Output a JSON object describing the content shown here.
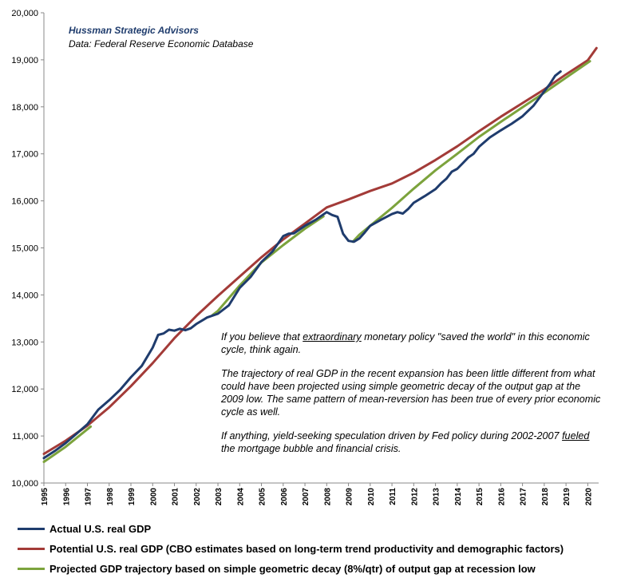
{
  "source": {
    "title": "Hussman Strategic Advisors",
    "data_note": "Data: Federal Reserve Economic Database"
  },
  "annotation": {
    "p1_pre": "If you believe that ",
    "p1_u": "extraordinary",
    "p1_post": " monetary policy \"saved the world\"  in this economic cycle, think again.",
    "p2": "The trajectory of real GDP in the recent expansion has been little different from what could have been projected using simple geometric decay of the output gap at the 2009  low. The same pattern of mean-reversion has been true of every prior economic cycle as well.",
    "p3_pre": "If anything, yield-seeking speculation driven by Fed policy during 2002-2007 ",
    "p3_u": "fueled",
    "p3_post": " the mortgage bubble and financial crisis."
  },
  "legend": [
    {
      "label": "Actual U.S. real GDP",
      "color": "#1f3c6d"
    },
    {
      "label": "Potential U.S. real GDP (CBO estimates based on long-term trend productivity and demographic factors)",
      "color": "#a33b38"
    },
    {
      "label": "Projected GDP trajectory based on simple geometric decay (8%/qtr) of output gap at recession low",
      "color": "#7ca33c"
    }
  ],
  "chart_data": {
    "type": "line",
    "title": "",
    "xlabel": "",
    "ylabel": "",
    "xlim": [
      1995,
      2020.5
    ],
    "ylim": [
      10000,
      20000
    ],
    "y_ticks": [
      "10,000",
      "11,000",
      "12,000",
      "13,000",
      "14,000",
      "15,000",
      "16,000",
      "17,000",
      "18,000",
      "19,000",
      "20,000"
    ],
    "x_ticks": [
      "1995",
      "1996",
      "1997",
      "1998",
      "1999",
      "2000",
      "2001",
      "2002",
      "2003",
      "2004",
      "2005",
      "2006",
      "2007",
      "2008",
      "2009",
      "2010",
      "2011",
      "2012",
      "2013",
      "2014",
      "2015",
      "2016",
      "2017",
      "2018",
      "2019",
      "2020"
    ],
    "grid": "none",
    "series": [
      {
        "name": "Actual U.S. real GDP",
        "color": "#1f3c6d",
        "x": [
          1995,
          1995.5,
          1996,
          1996.5,
          1997,
          1997.5,
          1998,
          1998.5,
          1999,
          1999.5,
          2000,
          2000.25,
          2000.5,
          2000.75,
          2001,
          2001.25,
          2001.5,
          2001.75,
          2002,
          2002.5,
          2003,
          2003.5,
          2004,
          2004.5,
          2005,
          2005.5,
          2006,
          2006.25,
          2006.5,
          2007,
          2007.5,
          2008,
          2008.25,
          2008.5,
          2008.75,
          2009,
          2009.25,
          2009.5,
          2009.75,
          2010,
          2010.5,
          2011,
          2011.25,
          2011.5,
          2011.75,
          2012,
          2012.5,
          2013,
          2013.25,
          2013.5,
          2013.75,
          2014,
          2014.25,
          2014.5,
          2014.75,
          2015,
          2015.5,
          2016,
          2016.5,
          2017,
          2017.5,
          2018,
          2018.25,
          2018.5,
          2018.75
        ],
        "values": [
          10530,
          10680,
          10850,
          11050,
          11250,
          11560,
          11760,
          11980,
          12250,
          12490,
          12880,
          13150,
          13180,
          13260,
          13240,
          13280,
          13250,
          13290,
          13380,
          13520,
          13600,
          13780,
          14150,
          14380,
          14700,
          14920,
          15250,
          15300,
          15310,
          15470,
          15600,
          15760,
          15700,
          15660,
          15300,
          15150,
          15130,
          15200,
          15330,
          15470,
          15600,
          15720,
          15760,
          15730,
          15830,
          15960,
          16100,
          16250,
          16370,
          16470,
          16620,
          16680,
          16800,
          16920,
          17000,
          17150,
          17350,
          17500,
          17640,
          17800,
          18020,
          18330,
          18480,
          18660,
          18750
        ]
      },
      {
        "name": "Potential U.S. real GDP (CBO estimates based on long-term trend productivity and demographic factors)",
        "color": "#a33b38",
        "x": [
          1995,
          1996,
          1997,
          1998,
          1999,
          2000,
          2001,
          2002,
          2003,
          2004,
          2005,
          2006,
          2007,
          2008,
          2009,
          2010,
          2011,
          2012,
          2013,
          2014,
          2015,
          2016,
          2017,
          2018,
          2019,
          2020,
          2020.4
        ],
        "values": [
          10620,
          10900,
          11220,
          11610,
          12060,
          12550,
          13080,
          13550,
          13980,
          14390,
          14800,
          15180,
          15520,
          15860,
          16030,
          16210,
          16370,
          16600,
          16870,
          17160,
          17480,
          17790,
          18080,
          18370,
          18690,
          18990,
          19250
        ]
      },
      {
        "name": "Projected GDP trajectory based on simple geometric decay (8%/qtr) of output gap at recession low",
        "color": "#7ca33c",
        "segments": [
          {
            "x": [
              1995,
              1996,
              1997.15
            ],
            "values": [
              10450,
              10770,
              11200
            ]
          },
          {
            "x": [
              2002.75,
              2003,
              2004,
              2005,
              2006,
              2007,
              2007.85
            ],
            "values": [
              13570,
              13660,
              14200,
              14690,
              15060,
              15410,
              15670
            ]
          },
          {
            "x": [
              2009.2,
              2009.5,
              2010,
              2011,
              2012,
              2013,
              2014,
              2015,
              2016,
              2017,
              2018,
              2019,
              2020.1
            ],
            "values": [
              15130,
              15280,
              15470,
              15850,
              16260,
              16650,
              17000,
              17360,
              17680,
              17990,
              18300,
              18620,
              18970
            ]
          }
        ]
      }
    ]
  }
}
